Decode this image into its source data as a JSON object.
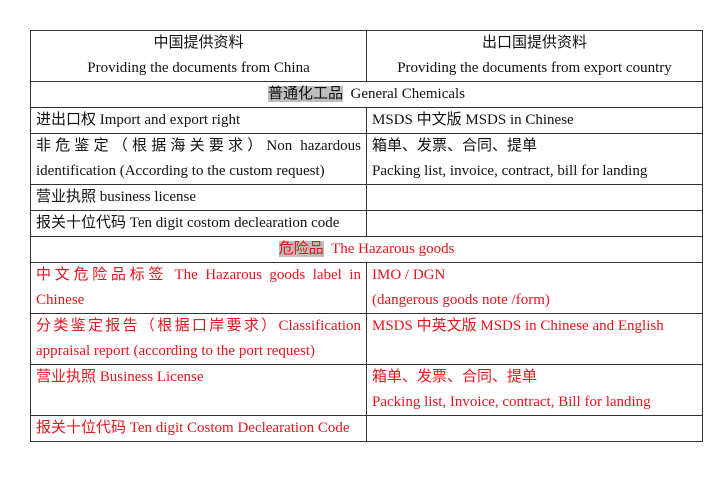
{
  "header": {
    "left_cn": "中国提供资料",
    "left_en": "Providing the documents from China",
    "right_cn": "出口国提供资料",
    "right_en": "Providing the documents from export country"
  },
  "general": {
    "title_cn": "普通化工品",
    "title_en": "General Chemicals",
    "rows": [
      {
        "left": [
          "进出口权  Import and export right"
        ],
        "right": [
          "MSDS 中文版    MSDS in Chinese"
        ]
      },
      {
        "left": [
          "非危鉴定（根据海关要求）Non hazardous identification (According to the custom request)"
        ],
        "right": [
          "箱单、发票、合同、提单",
          "Packing list, invoice, contract, bill for landing"
        ]
      },
      {
        "left": [
          "营业执照    business license"
        ],
        "right": []
      },
      {
        "left": [
          "报关十位代码  Ten digit costom declearation code"
        ],
        "right": []
      }
    ]
  },
  "hazardous": {
    "title_cn": "危险品",
    "title_en": "The Hazarous goods",
    "rows": [
      {
        "left": [
          "中文危险品标签  The Hazarous goods label in Chinese"
        ],
        "right": [
          "IMO / DGN",
          "(dangerous goods note /form)"
        ]
      },
      {
        "left": [
          "分类鉴定报告（根据口岸要求）Classification appraisal report (according to the port request)"
        ],
        "right": [
          "MSDS 中英文版  MSDS in Chinese and English"
        ]
      },
      {
        "left": [
          "营业执照  Business License"
        ],
        "right": [
          "箱单、发票、合同、提单",
          "Packing list, Invoice, contract, Bill for landing"
        ]
      },
      {
        "left": [
          "报关十位代码  Ten digit Costom Declearation Code"
        ],
        "right": []
      }
    ]
  },
  "colors": {
    "hazard_text": "#e8141c",
    "highlight": "#bdbdbd"
  }
}
